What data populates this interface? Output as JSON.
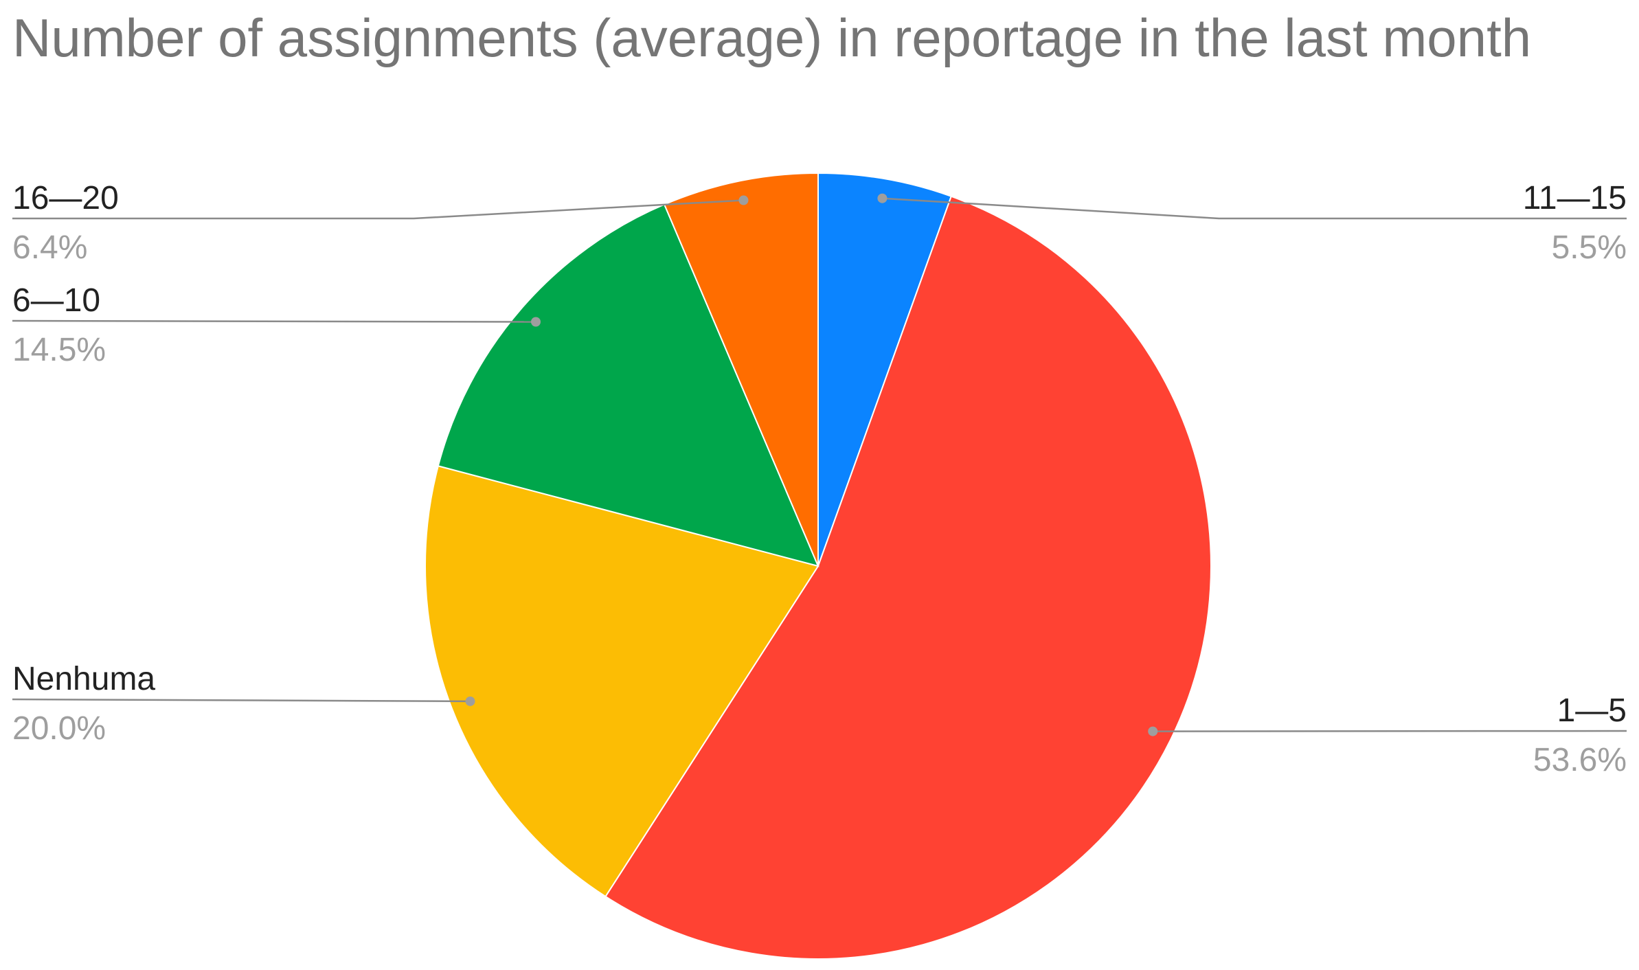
{
  "chart_data": {
    "type": "pie",
    "title": "Number of assignments (average) in reportage in the last month",
    "categories": [
      "11—15",
      "1—5",
      "Nenhuma",
      "6—10",
      "16—20"
    ],
    "values": [
      5.5,
      53.6,
      20.0,
      14.5,
      6.4
    ],
    "value_labels": [
      "5.5%",
      "53.6%",
      "20.0%",
      "14.5%",
      "6.4%"
    ],
    "colors": [
      "#0b84ff",
      "#ff4233",
      "#fcbd04",
      "#00a64b",
      "#ff6d00"
    ]
  }
}
